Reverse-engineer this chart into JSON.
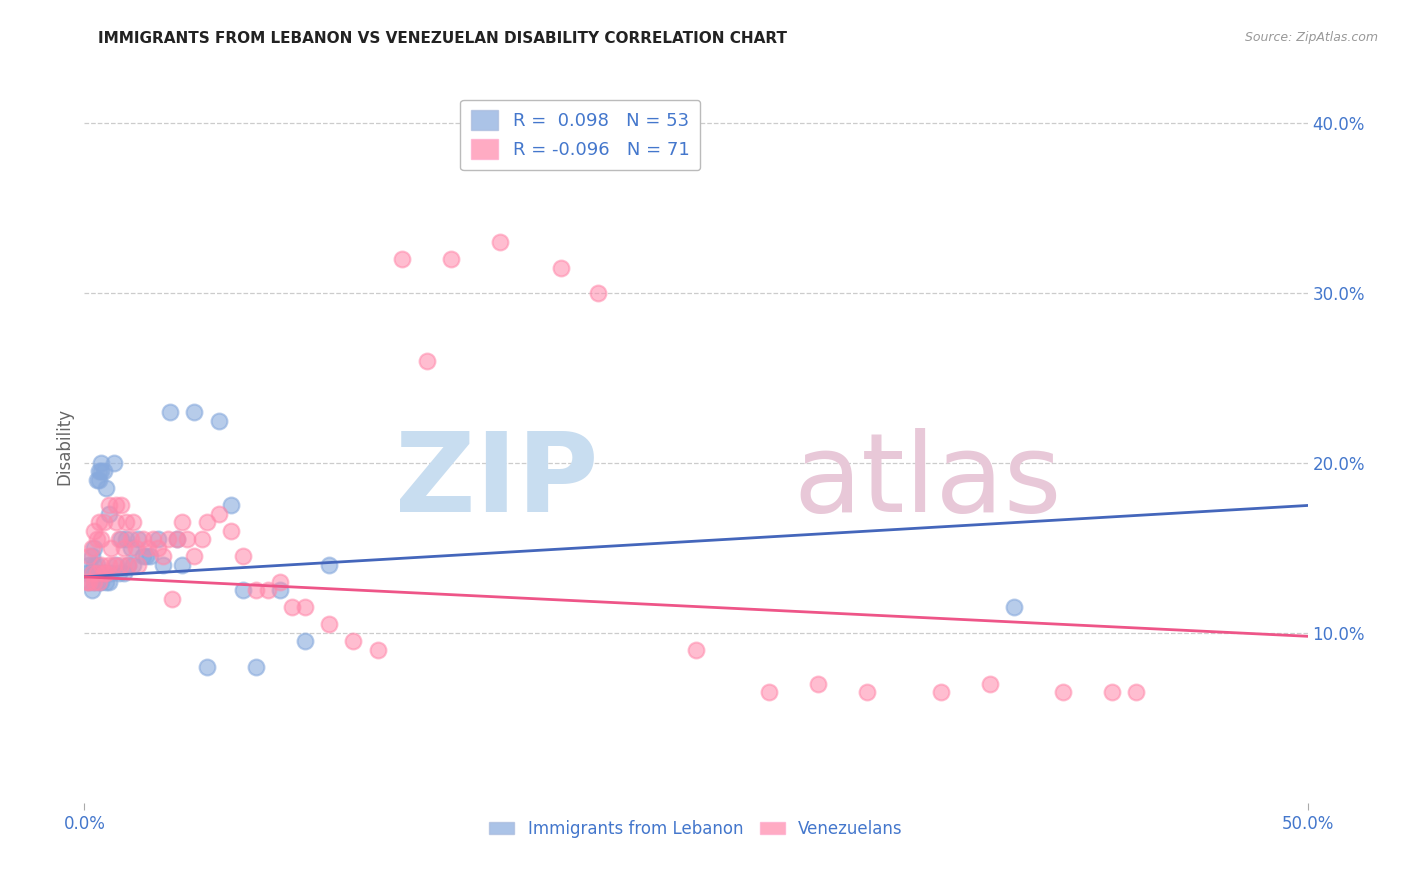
{
  "title": "IMMIGRANTS FROM LEBANON VS VENEZUELAN DISABILITY CORRELATION CHART",
  "source": "Source: ZipAtlas.com",
  "ylabel": "Disability",
  "xlim": [
    0.0,
    0.5
  ],
  "ylim": [
    0.0,
    0.42
  ],
  "xticks": [
    0.0,
    0.5
  ],
  "xtick_labels": [
    "0.0%",
    "50.0%"
  ],
  "yticks_right": [
    0.1,
    0.2,
    0.3,
    0.4
  ],
  "ytick_labels_right": [
    "10.0%",
    "20.0%",
    "30.0%",
    "40.0%"
  ],
  "grid_color": "#cccccc",
  "background_color": "#ffffff",
  "blue_color": "#88aadd",
  "pink_color": "#ff88aa",
  "blue_line_color": "#4466bb",
  "pink_line_color": "#ee5588",
  "axis_color": "#4477cc",
  "title_color": "#222222",
  "source_color": "#999999",
  "R_lebanon": 0.098,
  "N_lebanon": 53,
  "R_venezuela": -0.096,
  "N_venezuela": 71,
  "blue_scatter_x": [
    0.001,
    0.002,
    0.002,
    0.003,
    0.003,
    0.003,
    0.004,
    0.004,
    0.004,
    0.005,
    0.005,
    0.005,
    0.006,
    0.006,
    0.006,
    0.007,
    0.007,
    0.007,
    0.008,
    0.008,
    0.009,
    0.009,
    0.01,
    0.01,
    0.011,
    0.012,
    0.013,
    0.014,
    0.015,
    0.016,
    0.017,
    0.018,
    0.019,
    0.02,
    0.022,
    0.024,
    0.025,
    0.027,
    0.03,
    0.032,
    0.035,
    0.038,
    0.04,
    0.045,
    0.05,
    0.055,
    0.06,
    0.065,
    0.07,
    0.08,
    0.09,
    0.1,
    0.38
  ],
  "blue_scatter_y": [
    0.135,
    0.13,
    0.14,
    0.125,
    0.135,
    0.145,
    0.13,
    0.14,
    0.15,
    0.135,
    0.14,
    0.19,
    0.13,
    0.19,
    0.195,
    0.13,
    0.195,
    0.2,
    0.135,
    0.195,
    0.13,
    0.185,
    0.13,
    0.17,
    0.135,
    0.2,
    0.14,
    0.135,
    0.155,
    0.135,
    0.155,
    0.14,
    0.15,
    0.14,
    0.155,
    0.145,
    0.145,
    0.145,
    0.155,
    0.14,
    0.23,
    0.155,
    0.14,
    0.23,
    0.08,
    0.225,
    0.175,
    0.125,
    0.08,
    0.125,
    0.095,
    0.14,
    0.115
  ],
  "pink_scatter_x": [
    0.001,
    0.002,
    0.002,
    0.003,
    0.003,
    0.004,
    0.004,
    0.005,
    0.005,
    0.006,
    0.006,
    0.007,
    0.007,
    0.008,
    0.008,
    0.009,
    0.01,
    0.01,
    0.011,
    0.012,
    0.013,
    0.013,
    0.014,
    0.015,
    0.015,
    0.016,
    0.017,
    0.018,
    0.019,
    0.02,
    0.021,
    0.022,
    0.024,
    0.026,
    0.028,
    0.03,
    0.032,
    0.034,
    0.036,
    0.038,
    0.04,
    0.042,
    0.045,
    0.048,
    0.05,
    0.055,
    0.06,
    0.065,
    0.07,
    0.075,
    0.08,
    0.085,
    0.09,
    0.1,
    0.11,
    0.12,
    0.13,
    0.14,
    0.15,
    0.17,
    0.195,
    0.21,
    0.25,
    0.28,
    0.3,
    0.32,
    0.35,
    0.37,
    0.4,
    0.42,
    0.43
  ],
  "pink_scatter_y": [
    0.13,
    0.13,
    0.145,
    0.135,
    0.15,
    0.13,
    0.16,
    0.135,
    0.155,
    0.13,
    0.165,
    0.14,
    0.155,
    0.135,
    0.165,
    0.135,
    0.14,
    0.175,
    0.15,
    0.14,
    0.165,
    0.175,
    0.155,
    0.14,
    0.175,
    0.15,
    0.165,
    0.14,
    0.155,
    0.165,
    0.15,
    0.14,
    0.155,
    0.15,
    0.155,
    0.15,
    0.145,
    0.155,
    0.12,
    0.155,
    0.165,
    0.155,
    0.145,
    0.155,
    0.165,
    0.17,
    0.16,
    0.145,
    0.125,
    0.125,
    0.13,
    0.115,
    0.115,
    0.105,
    0.095,
    0.09,
    0.32,
    0.26,
    0.32,
    0.33,
    0.315,
    0.3,
    0.09,
    0.065,
    0.07,
    0.065,
    0.065,
    0.07,
    0.065,
    0.065,
    0.065
  ],
  "watermark_zip_color": "#c8ddf0",
  "watermark_atlas_color": "#e8c8d8"
}
